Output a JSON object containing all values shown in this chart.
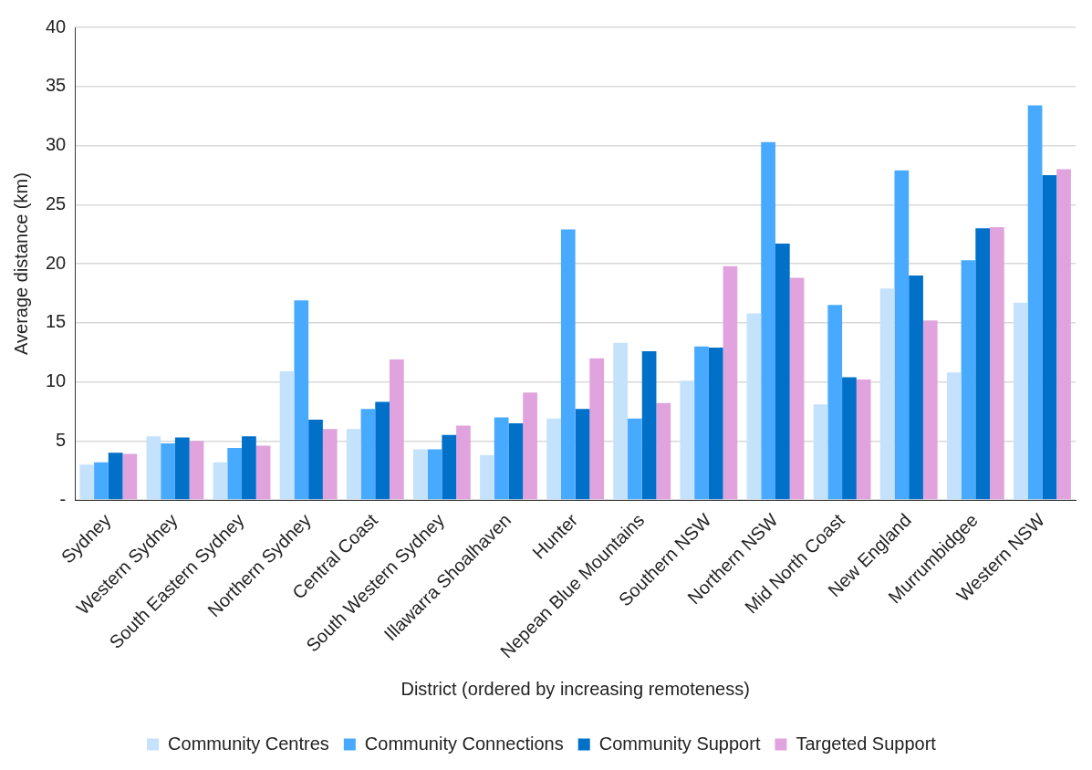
{
  "chart_data": {
    "type": "bar",
    "xlabel": "District (ordered by increasing remoteness)",
    "ylabel": "Average distance (km)",
    "categories": [
      "Sydney",
      "Western Sydney",
      "South Eastern Sydney",
      "Northern Sydney",
      "Central Coast",
      "South Western Sydney",
      "Illawarra Shoalhaven",
      "Hunter",
      "Nepean Blue Mountains",
      "Southern NSW",
      "Northern NSW",
      "Mid North Coast",
      "New England",
      "Murrumbidgee",
      "Western NSW"
    ],
    "series": [
      {
        "name": "Community Centres",
        "color": "#c5e2fd",
        "values": [
          3.0,
          5.4,
          3.2,
          10.9,
          6.0,
          4.3,
          3.8,
          6.9,
          13.3,
          10.1,
          15.8,
          8.1,
          17.9,
          10.8,
          16.7
        ]
      },
      {
        "name": "Community Connections",
        "color": "#47aaff",
        "values": [
          3.2,
          4.8,
          4.4,
          16.9,
          7.7,
          4.3,
          7.0,
          22.9,
          6.9,
          13.0,
          30.3,
          16.5,
          27.9,
          20.3,
          33.4
        ]
      },
      {
        "name": "Community Support",
        "color": "#0070c8",
        "values": [
          4.0,
          5.3,
          5.4,
          6.8,
          8.3,
          5.5,
          6.5,
          7.7,
          12.6,
          12.9,
          21.7,
          10.4,
          19.0,
          23.0,
          27.5
        ]
      },
      {
        "name": "Targeted Support",
        "color": "#e0a3de",
        "values": [
          3.9,
          5.0,
          4.6,
          6.0,
          11.9,
          6.3,
          9.1,
          12.0,
          8.2,
          19.8,
          18.8,
          10.2,
          15.2,
          23.1,
          28.0
        ]
      }
    ],
    "ylim": [
      0,
      40
    ],
    "yticks": [
      {
        "value": 0,
        "label": "-"
      },
      5,
      10,
      15,
      20,
      25,
      30,
      35,
      40
    ],
    "grid": "y",
    "legend": "bottom"
  }
}
